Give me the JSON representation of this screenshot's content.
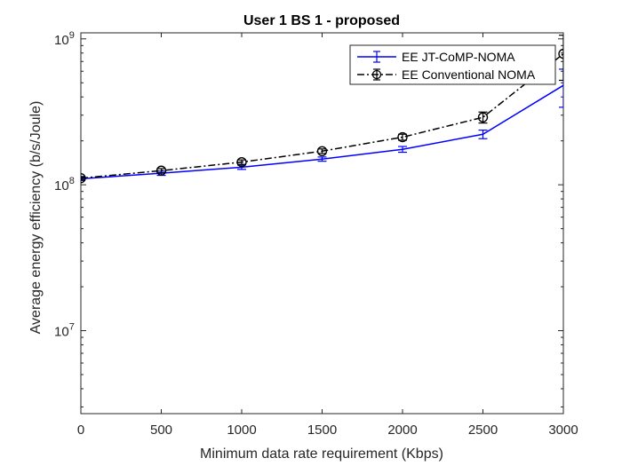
{
  "chart_data": {
    "type": "line",
    "title": "User 1 BS 1 - proposed",
    "xlabel": "Minimum data rate requirement (Kbps)",
    "ylabel": "Average energy efficiency (b/s/Joule)",
    "xlim": [
      0,
      3000
    ],
    "ylim": [
      2700000,
      1100000000
    ],
    "yscale": "log",
    "grid": false,
    "legend_position": "top-right",
    "x_ticks": [
      0,
      500,
      1000,
      1500,
      2000,
      2500,
      3000
    ],
    "x_tick_labels": [
      "0",
      "500",
      "1000",
      "1500",
      "2000",
      "2500",
      "3000"
    ],
    "y_ticks": [
      10000000,
      100000000,
      1000000000
    ],
    "y_tick_labels": [
      {
        "base": "10",
        "exp": "7"
      },
      {
        "base": "10",
        "exp": "8"
      },
      {
        "base": "10",
        "exp": "9"
      }
    ],
    "x": [
      0,
      500,
      1000,
      1500,
      2000,
      2500,
      3000
    ],
    "series": [
      {
        "name": "EE JT-CoMP-NOMA",
        "color": "#0000ff",
        "line_style": "solid",
        "marker": "errorbar",
        "values": [
          110000000,
          120000000,
          132000000,
          150000000,
          175000000,
          222000000,
          480000000
        ],
        "error_low": [
          3000000,
          4000000,
          4500000,
          5000000,
          8000000,
          15000000,
          140000000
        ],
        "error_high": [
          3000000,
          4000000,
          4500000,
          5000000,
          8000000,
          15000000,
          140000000
        ]
      },
      {
        "name": "EE Conventional NOMA",
        "color": "#000000",
        "line_style": "dashdot",
        "marker": "circle",
        "values": [
          111000000,
          125000000,
          143000000,
          170000000,
          212000000,
          290000000,
          790000000
        ],
        "error_low": [
          3000000,
          4000000,
          5000000,
          6000000,
          10000000,
          25000000,
          270000000
        ],
        "error_high": [
          3000000,
          4000000,
          5000000,
          6000000,
          10000000,
          25000000,
          270000000
        ]
      }
    ]
  }
}
